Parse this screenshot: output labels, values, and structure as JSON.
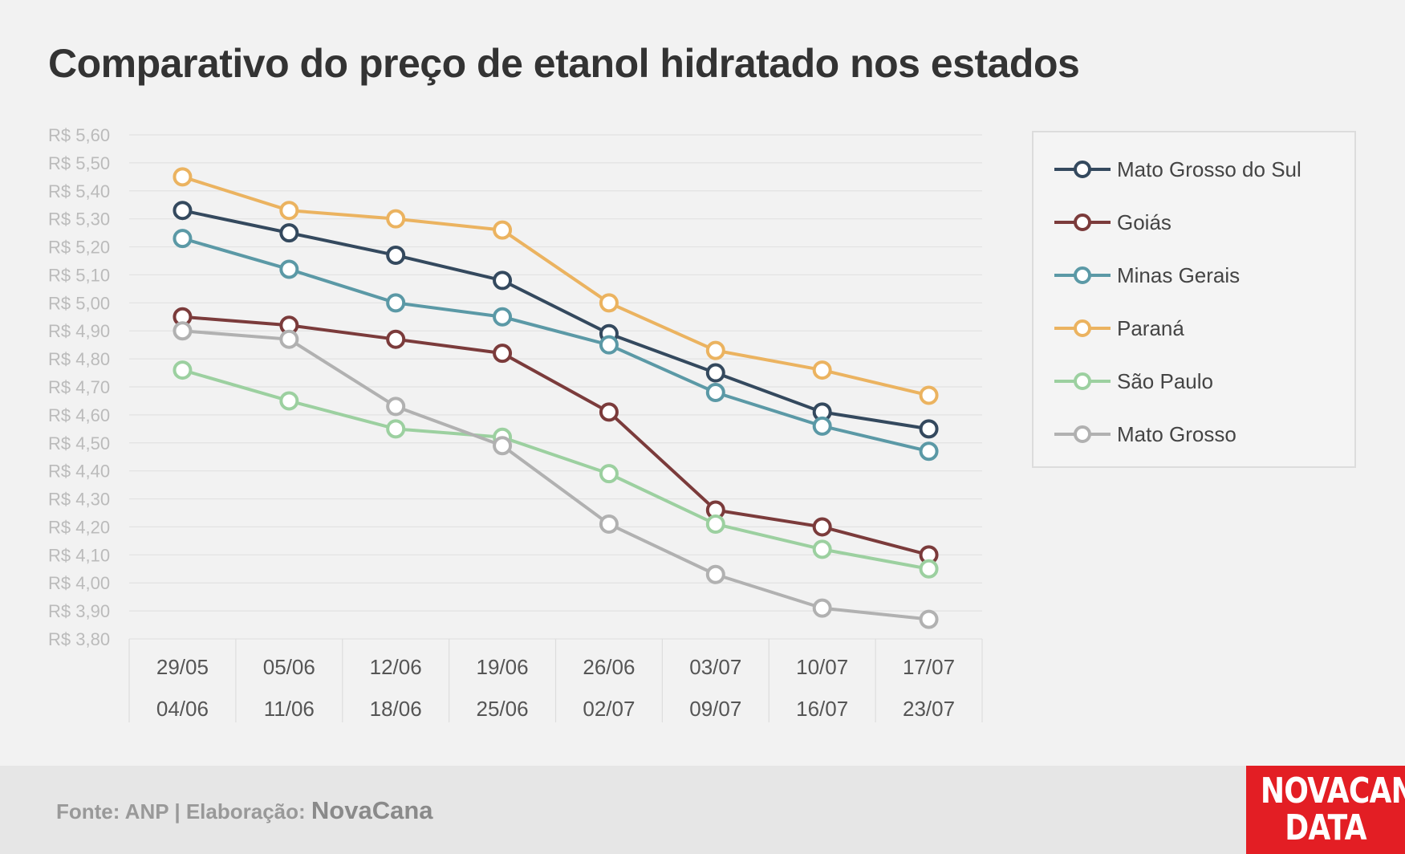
{
  "title": "Comparativo do preço de etanol hidratado nos estados",
  "chart_data": {
    "type": "line",
    "title": "Comparativo do preço de etanol hidratado nos estados",
    "xlabel": "",
    "ylabel": "",
    "ylim": [
      3.8,
      5.6
    ],
    "y_step": 0.1,
    "y_tick_prefix": "R$ ",
    "categories": [
      [
        "29/05",
        "04/06"
      ],
      [
        "05/06",
        "11/06"
      ],
      [
        "12/06",
        "18/06"
      ],
      [
        "19/06",
        "25/06"
      ],
      [
        "26/06",
        "02/07"
      ],
      [
        "03/07",
        "09/07"
      ],
      [
        "10/07",
        "16/07"
      ],
      [
        "17/07",
        "23/07"
      ]
    ],
    "grid": true,
    "legend_position": "right",
    "series": [
      {
        "name": "Mato Grosso do Sul",
        "color": "#34495e",
        "values": [
          5.33,
          5.25,
          5.17,
          5.08,
          4.89,
          4.75,
          4.61,
          4.55
        ]
      },
      {
        "name": "Goiás",
        "color": "#7b3b3b",
        "values": [
          4.95,
          4.92,
          4.87,
          4.82,
          4.61,
          4.26,
          4.2,
          4.1
        ]
      },
      {
        "name": "Minas Gerais",
        "color": "#5b99a6",
        "values": [
          5.23,
          5.12,
          5.0,
          4.95,
          4.85,
          4.68,
          4.56,
          4.47
        ]
      },
      {
        "name": "Paraná",
        "color": "#ebb360",
        "values": [
          5.45,
          5.33,
          5.3,
          5.26,
          5.0,
          4.83,
          4.76,
          4.67
        ]
      },
      {
        "name": "São Paulo",
        "color": "#9cd0a0",
        "values": [
          4.76,
          4.65,
          4.55,
          4.52,
          4.39,
          4.21,
          4.12,
          4.05
        ]
      },
      {
        "name": "Mato Grosso",
        "color": "#b1b1b1",
        "values": [
          4.9,
          4.87,
          4.63,
          4.49,
          4.21,
          4.03,
          3.91,
          3.87
        ]
      }
    ]
  },
  "footer": {
    "source": "Fonte: ANP | Elaboração: ",
    "brand": "NovaCana"
  },
  "logo": {
    "line1": "NOVACANA",
    "line2": "DATA"
  }
}
